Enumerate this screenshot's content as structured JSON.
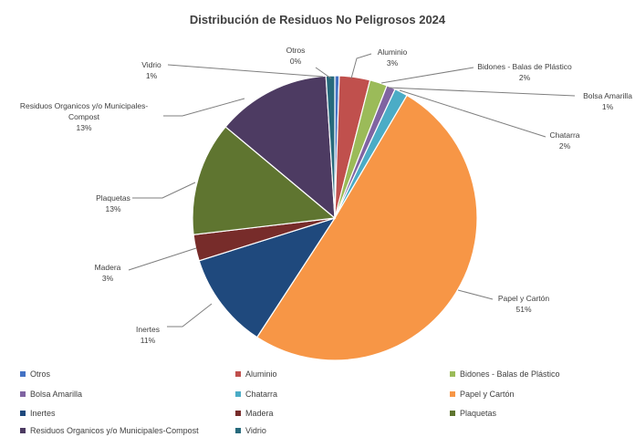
{
  "chart_data": {
    "type": "pie",
    "title": "Distribución de Residuos No Peligrosos 2024",
    "slices": [
      {
        "name": "Otros",
        "value": 0.5,
        "pct_label": "0%",
        "color": "#4472c4"
      },
      {
        "name": "Aluminio",
        "value": 3.5,
        "pct_label": "3%",
        "color": "#c0504d"
      },
      {
        "name": "Bidones - Balas de Plástico",
        "value": 2,
        "pct_label": "2%",
        "color": "#9bbb59"
      },
      {
        "name": "Bolsa Amarilla",
        "value": 1,
        "pct_label": "1%",
        "color": "#8064a2"
      },
      {
        "name": "Chatarra",
        "value": 1.5,
        "pct_label": "2%",
        "color": "#4bacc6"
      },
      {
        "name": "Papel y Cartón",
        "value": 51,
        "pct_label": "51%",
        "color": "#f79646"
      },
      {
        "name": "Inertes",
        "value": 11,
        "pct_label": "11%",
        "color": "#1f497d"
      },
      {
        "name": "Madera",
        "value": 3,
        "pct_label": "3%",
        "color": "#772c2a"
      },
      {
        "name": "Plaquetas",
        "value": 13,
        "pct_label": "13%",
        "color": "#5f7530"
      },
      {
        "name": "Residuos Organicos y/o Municipales-Compost",
        "value": 13,
        "pct_label": "13%",
        "color": "#4d3b62"
      },
      {
        "name": "Vidrio",
        "value": 1,
        "pct_label": "1%",
        "color": "#276a7c"
      }
    ],
    "labels": {
      "otros": {
        "name": "Otros",
        "pct": "0%"
      },
      "aluminio": {
        "name": "Aluminio",
        "pct": "3%"
      },
      "bidones": {
        "name": "Bidones - Balas de Plástico",
        "pct": "2%"
      },
      "bolsa": {
        "name": "Bolsa Amarilla",
        "pct": "1%"
      },
      "chatarra": {
        "name": "Chatarra",
        "pct": "2%"
      },
      "papel": {
        "name": "Papel y Cartón",
        "pct": "51%"
      },
      "inertes": {
        "name": "Inertes",
        "pct": "11%"
      },
      "madera": {
        "name": "Madera",
        "pct": "3%"
      },
      "plaquetas": {
        "name": "Plaquetas",
        "pct": "13%"
      },
      "residuos_1": "Residuos Organicos y/o Municipales-",
      "residuos_2": "Compost",
      "residuos_pct": "13%",
      "vidrio": {
        "name": "Vidrio",
        "pct": "1%"
      }
    },
    "legend_position": "bottom",
    "legend": [
      {
        "label": "Otros",
        "color": "#4472c4"
      },
      {
        "label": "Aluminio",
        "color": "#c0504d"
      },
      {
        "label": "Bidones - Balas de Plástico",
        "color": "#9bbb59"
      },
      {
        "label": "Bolsa Amarilla",
        "color": "#8064a2"
      },
      {
        "label": "Chatarra",
        "color": "#4bacc6"
      },
      {
        "label": "Papel y Cartón",
        "color": "#f79646"
      },
      {
        "label": "Inertes",
        "color": "#1f497d"
      },
      {
        "label": "Madera",
        "color": "#772c2a"
      },
      {
        "label": "Plaquetas",
        "color": "#5f7530"
      },
      {
        "label": "Residuos Organicos y/o Municipales-Compost",
        "color": "#4d3b62"
      },
      {
        "label": "Vidrio",
        "color": "#276a7c"
      }
    ]
  }
}
